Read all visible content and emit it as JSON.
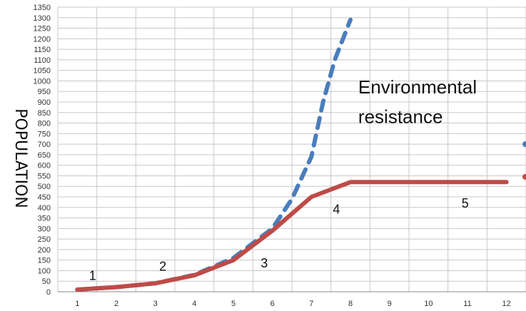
{
  "chart_data": {
    "type": "line",
    "xlabel": "",
    "ylabel": "POPULATION",
    "x": [
      1,
      2,
      3,
      4,
      5,
      6,
      7,
      8,
      9,
      10,
      11,
      12
    ],
    "xlim": [
      0.5,
      12.5
    ],
    "ylim": [
      0,
      1350
    ],
    "ytick_step": 50,
    "grid": true,
    "series": [
      {
        "name": "",
        "style": "dashed",
        "color": "#4a7ebb",
        "points": [
          [
            1,
            10
          ],
          [
            2,
            22
          ],
          [
            3,
            40
          ],
          [
            4,
            80
          ],
          [
            5,
            160
          ],
          [
            6,
            300
          ],
          [
            6.5,
            440
          ],
          [
            7,
            640
          ],
          [
            7.3,
            900
          ],
          [
            7.6,
            1100
          ],
          [
            8,
            1290
          ]
        ]
      },
      {
        "name": "",
        "style": "solid",
        "color": "#be4b48",
        "points": [
          [
            1,
            10
          ],
          [
            2,
            22
          ],
          [
            3,
            40
          ],
          [
            4,
            78
          ],
          [
            5,
            150
          ],
          [
            6,
            290
          ],
          [
            7,
            450
          ],
          [
            8,
            520
          ],
          [
            12,
            520
          ]
        ]
      }
    ],
    "edge_markers": [
      {
        "value": 700,
        "color": "#4a7ebb"
      },
      {
        "value": 545,
        "color": "#be4b48"
      }
    ],
    "annotations": [
      {
        "text": "Environmental",
        "x": 8.2,
        "y": 940,
        "kind": "note"
      },
      {
        "text": "resistance",
        "x": 8.2,
        "y": 800,
        "kind": "note"
      },
      {
        "text": "1",
        "x": 1.3,
        "y": 55,
        "kind": "stage"
      },
      {
        "text": "2",
        "x": 3.1,
        "y": 100,
        "kind": "stage"
      },
      {
        "text": "3",
        "x": 5.7,
        "y": 115,
        "kind": "stage"
      },
      {
        "text": "4",
        "x": 7.55,
        "y": 370,
        "kind": "stage"
      },
      {
        "text": "5",
        "x": 10.85,
        "y": 400,
        "kind": "stage"
      }
    ]
  }
}
